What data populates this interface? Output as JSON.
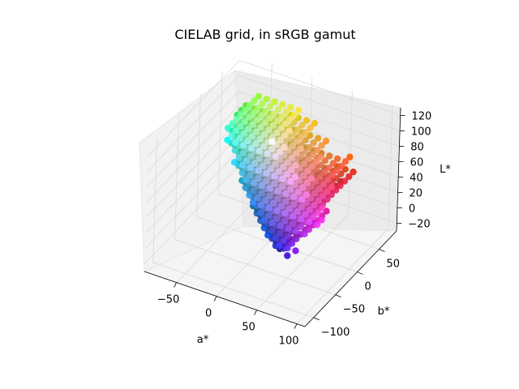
{
  "chart_data": {
    "type": "scatter",
    "projection": "3d",
    "title": "CIELAB grid, in sRGB gamut",
    "xlabel": "a*",
    "ylabel": "b*",
    "zlabel": "L*",
    "x_ticks": [
      -50,
      0,
      50,
      100
    ],
    "y_ticks": [
      -100,
      -50,
      0,
      50
    ],
    "z_ticks": [
      -20,
      0,
      20,
      40,
      60,
      80,
      100,
      120
    ],
    "xlim": [
      -90,
      110
    ],
    "ylim": [
      -120,
      90
    ],
    "zlim": [
      -30,
      130
    ],
    "grid": true,
    "grid_spec": {
      "L_values": [
        0,
        10,
        20,
        30,
        40,
        50,
        60,
        70,
        80,
        90,
        100
      ],
      "a_range": [
        -100,
        100
      ],
      "b_range": [
        -110,
        100
      ],
      "ab_step": 10,
      "marker_color": "sRGB colour of each grid point"
    },
    "colors": {
      "pane": "#f2f2f2",
      "grid": "#d9d9d9",
      "axis_line": "#000000"
    }
  }
}
